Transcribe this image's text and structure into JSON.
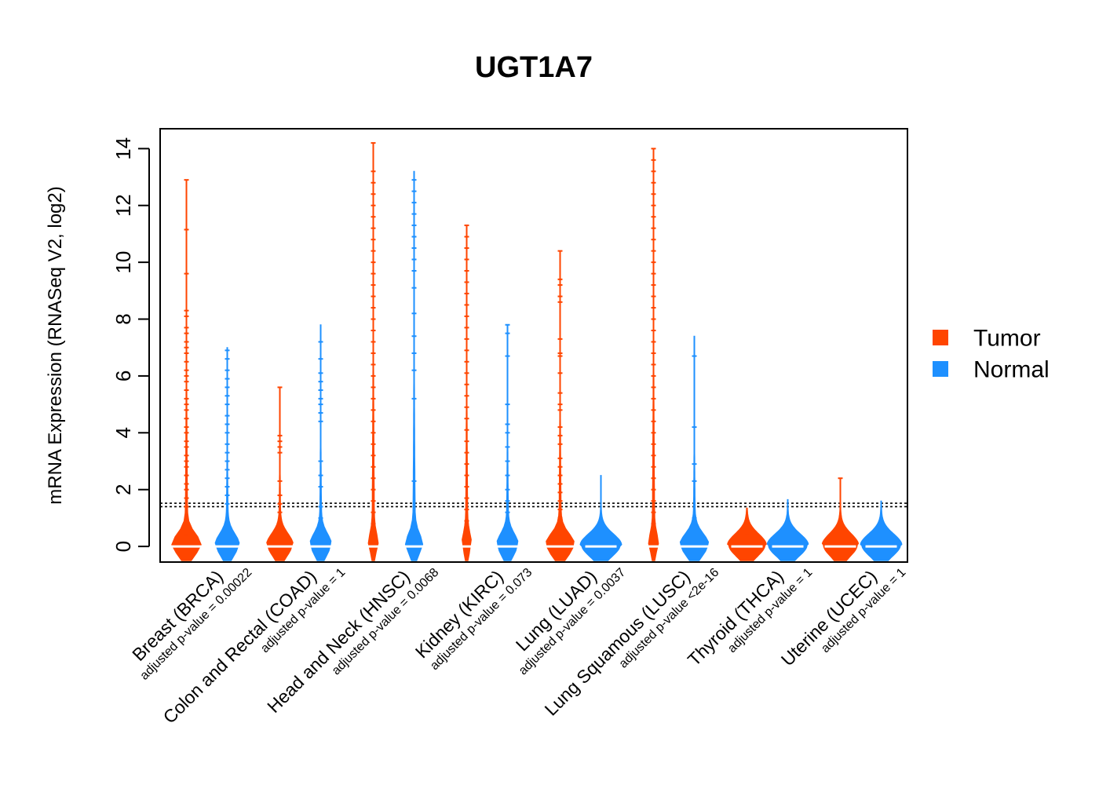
{
  "chart_data": {
    "type": "violin",
    "title": "UGT1A7",
    "ylabel": "mRNA Expression (RNASeq V2, log2)",
    "xlabel": "",
    "ylim": [
      -0.55,
      14.7
    ],
    "yticks": [
      0,
      2,
      4,
      6,
      8,
      10,
      12,
      14
    ],
    "grid": false,
    "legend_position": "right",
    "threshold_lines": [
      1.4,
      1.52
    ],
    "colors": {
      "Tumor": "#FF4500",
      "Normal": "#1E90FF",
      "median": "#ffffff"
    },
    "legend": [
      "Tumor",
      "Normal"
    ],
    "groups": [
      {
        "category": "Breast (BRCA)",
        "pvalue": "adjusted p-value = 0.00022",
        "tumor": {
          "median": 0.0,
          "max": 12.9,
          "scale": 0.55,
          "outliers": [
            12.9,
            11.15,
            9.6,
            8.3,
            8.1,
            7.7,
            7.5,
            7.2,
            7.0,
            6.8,
            6.5,
            6.2,
            6.0,
            5.8,
            5.5,
            5.2,
            5.0,
            4.8,
            4.5,
            4.2,
            4.0,
            3.7,
            3.5,
            3.2,
            3.0,
            2.8,
            2.5,
            2.2,
            2.0,
            1.7,
            1.4,
            1.0,
            0.7,
            0.4
          ]
        },
        "normal": {
          "median": 0.0,
          "max": 7.0,
          "scale": 0.45,
          "outliers": [
            6.9,
            6.6,
            6.2,
            5.9,
            5.6,
            5.3,
            5.0,
            4.6,
            4.3,
            4.0,
            3.6,
            3.3,
            3.0,
            2.7,
            2.4,
            2.1,
            1.8,
            1.5
          ]
        }
      },
      {
        "category": "Colon and Rectal (COAD)",
        "pvalue": "adjusted p-value = 1",
        "tumor": {
          "median": 0.0,
          "max": 5.6,
          "scale": 0.5,
          "outliers": [
            5.6,
            3.9,
            3.7,
            3.5,
            3.3,
            2.3,
            1.8,
            1.5,
            1.2,
            0.9,
            0.5
          ]
        },
        "normal": {
          "median": 0.0,
          "max": 7.8,
          "scale": 0.4,
          "outliers": [
            7.2,
            6.6,
            6.1,
            5.8,
            5.5,
            5.2,
            5.0,
            4.7,
            4.4,
            3.0,
            2.5,
            2.1,
            1.4,
            1.0,
            0.8
          ]
        }
      },
      {
        "category": "Head and Neck (HNSC)",
        "pvalue": "adjusted p-value = 0.0068",
        "tumor": {
          "median": 0.0,
          "max": 14.2,
          "scale": 0.15,
          "outliers": [
            14.2,
            13.2,
            12.8,
            12.4,
            12.0,
            11.6,
            11.2,
            10.8,
            10.4,
            10.0,
            9.6,
            9.2,
            8.8,
            8.4,
            8.0,
            7.6,
            7.2,
            6.8,
            6.4,
            6.0,
            5.6,
            5.2,
            4.8,
            4.4,
            4.0,
            3.6,
            3.2,
            2.8,
            2.4,
            2.0,
            1.6,
            1.2,
            0.8,
            0.4
          ]
        },
        "normal": {
          "median": 0.0,
          "max": 13.2,
          "scale": 0.3,
          "outliers": [
            12.9,
            12.5,
            12.1,
            11.7,
            11.3,
            10.9,
            10.5,
            10.1,
            9.7,
            9.1,
            8.2,
            7.4,
            6.8,
            6.2,
            5.2,
            2.3,
            0.6
          ]
        }
      },
      {
        "category": "Kidney (KIRC)",
        "pvalue": "adjusted p-value = 0.073",
        "tumor": {
          "median": 0.0,
          "max": 11.3,
          "scale": 0.15,
          "outliers": [
            11.3,
            10.9,
            10.5,
            10.1,
            9.7,
            9.3,
            8.9,
            8.5,
            8.1,
            7.7,
            7.3,
            6.9,
            6.5,
            6.1,
            5.7,
            5.3,
            4.9,
            4.5,
            4.1,
            3.7,
            3.3,
            2.9,
            2.5,
            2.1,
            1.7,
            1.3,
            0.9,
            0.5
          ]
        },
        "normal": {
          "median": 0.0,
          "max": 7.8,
          "scale": 0.4,
          "outliers": [
            7.8,
            7.5,
            6.7,
            5.0,
            4.3,
            4.0,
            3.5,
            3.0,
            2.5,
            2.0,
            1.6,
            1.2,
            0.8,
            0.4
          ]
        }
      },
      {
        "category": "Lung (LUAD)",
        "pvalue": "adjusted p-value = 0.0037",
        "tumor": {
          "median": 0.0,
          "max": 10.4,
          "scale": 0.55,
          "outliers": [
            10.4,
            9.4,
            9.2,
            8.8,
            8.6,
            7.3,
            6.8,
            6.7,
            6.1,
            5.4,
            5.0,
            4.8,
            4.2,
            3.9,
            3.6,
            3.1,
            2.8,
            2.5,
            2.2,
            1.9,
            1.6,
            1.3,
            1.0,
            0.7,
            0.4
          ]
        },
        "normal": {
          "median": 0.0,
          "max": 2.5,
          "scale": 0.8,
          "outliers": [
            0.25
          ]
        }
      },
      {
        "category": "Lung Squamous (LUSC)",
        "pvalue": "adjusted p-value <2e-16",
        "tumor": {
          "median": 0.0,
          "max": 14.0,
          "scale": 0.15,
          "outliers": [
            14.0,
            13.6,
            13.2,
            12.8,
            12.4,
            12.0,
            11.6,
            11.2,
            10.8,
            10.4,
            10.0,
            9.6,
            9.2,
            8.8,
            8.4,
            8.0,
            7.6,
            7.2,
            6.8,
            6.4,
            6.0,
            5.6,
            5.2,
            4.8,
            4.4,
            4.0,
            3.6,
            3.2,
            2.8,
            2.4,
            2.0,
            1.6,
            1.2,
            0.8,
            0.5
          ]
        },
        "normal": {
          "median": 0.0,
          "max": 7.4,
          "scale": 0.55,
          "outliers": [
            6.7,
            4.2,
            2.9,
            2.3,
            1.0,
            0.7,
            0.3
          ]
        }
      },
      {
        "category": "Thyroid (THCA)",
        "pvalue": "adjusted p-value = 1",
        "tumor": {
          "median": 0.0,
          "max": 1.35,
          "scale": 0.75,
          "outliers": [
            0.45
          ]
        },
        "normal": {
          "median": 0.0,
          "max": 1.65,
          "scale": 0.8,
          "outliers": []
        }
      },
      {
        "category": "Uterine (UCEC)",
        "pvalue": "adjusted p-value = 1",
        "tumor": {
          "median": 0.0,
          "max": 2.4,
          "scale": 0.7,
          "outliers": [
            2.4
          ]
        },
        "normal": {
          "median": 0.0,
          "max": 1.6,
          "scale": 0.8,
          "outliers": []
        }
      }
    ]
  }
}
